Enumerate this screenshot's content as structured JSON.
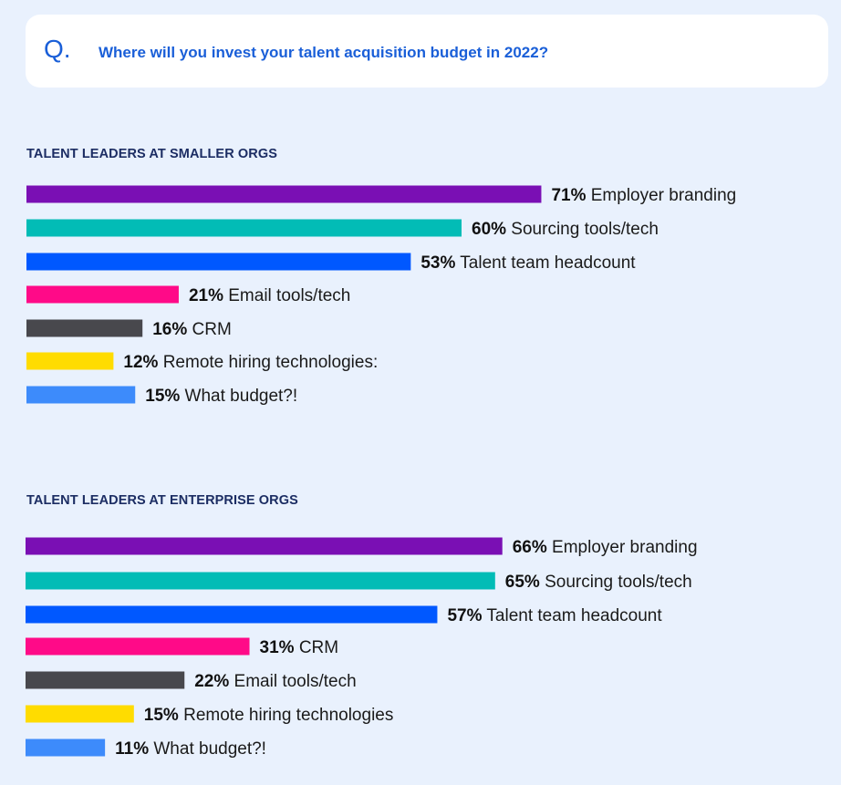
{
  "question": {
    "letter": "Q.",
    "text": "Where will you invest your talent acquisition budget in 2022?"
  },
  "chart_data": [
    {
      "type": "bar",
      "orientation": "horizontal",
      "title": "TALENT LEADERS AT SMALLER ORGS",
      "unit": "%",
      "bars": [
        {
          "value": 71,
          "label": "Employer branding",
          "color": "#7a0fb4"
        },
        {
          "value": 60,
          "label": "Sourcing tools/tech",
          "color": "#02bcb6"
        },
        {
          "value": 53,
          "label": "Talent team headcount",
          "color": "#0058ff"
        },
        {
          "value": 21,
          "label": "Email tools/tech",
          "color": "#ff0a88"
        },
        {
          "value": 16,
          "label": "CRM",
          "color": "#48484d"
        },
        {
          "value": 12,
          "label": "Remote hiring technologies:",
          "color": "#ffdc00"
        },
        {
          "value": 15,
          "label": "What budget?!",
          "color": "#3d8bfb"
        }
      ]
    },
    {
      "type": "bar",
      "orientation": "horizontal",
      "title": "TALENT LEADERS AT ENTERPRISE ORGS",
      "unit": "%",
      "bars": [
        {
          "value": 66,
          "label": "Employer branding",
          "color": "#7a0fb4"
        },
        {
          "value": 65,
          "label": "Sourcing tools/tech",
          "color": "#02bcb6"
        },
        {
          "value": 57,
          "label": "Talent team headcount",
          "color": "#0058ff"
        },
        {
          "value": 31,
          "label": "CRM",
          "color": "#ff0a88"
        },
        {
          "value": 22,
          "label": "Email tools/tech",
          "color": "#48484d"
        },
        {
          "value": 15,
          "label": "Remote hiring technologies",
          "color": "#ffdc00"
        },
        {
          "value": 11,
          "label": "What budget?!",
          "color": "#3d8bfb"
        }
      ]
    }
  ]
}
